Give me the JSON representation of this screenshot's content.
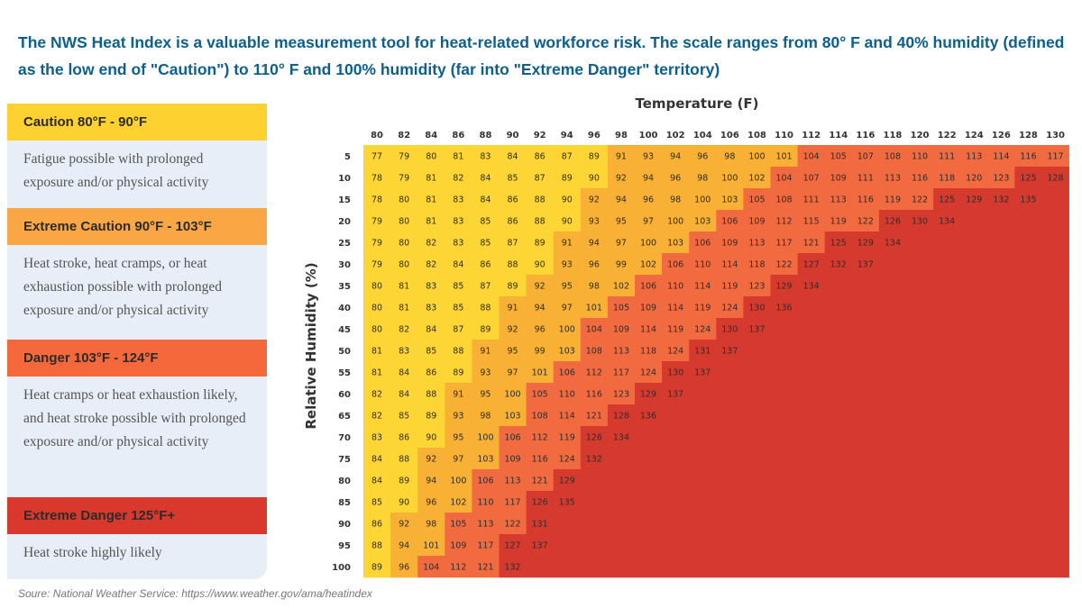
{
  "header": {
    "title": "The NWS Heat Index is a valuable measurement tool for heat-related workforce risk. The scale ranges from 80° F and 40% humidity (defined as the low end of \"Caution\") to 110° F and 100% humidity (far into \"Extreme Danger\" territory)"
  },
  "legend": {
    "caution": {
      "label": "Caution  80°F - 90°F",
      "desc": "Fatigue possible with prolonged exposure and/or physical activity",
      "color": "#fdcf2f"
    },
    "extreme_caution": {
      "label": "Extreme Caution  90°F - 103°F",
      "desc": "Heat stroke, heat cramps, or heat exhaustion possible with prolonged exposure and/or physical activity",
      "color": "#f9a745"
    },
    "danger": {
      "label": "Danger  103°F - 124°F",
      "desc": "Heat cramps or heat exhaustion likely, and heat stroke possible with prolonged exposure and/or physical activity",
      "color": "#f5683c"
    },
    "extreme_danger": {
      "label": "Extreme Danger  125°F+",
      "desc": "Heat stroke highly likely",
      "color": "#d8392c"
    }
  },
  "source": "Soure: National Weather Service: https://www.weather.gov/ama/heatindex",
  "chart_data": {
    "type": "heatmap",
    "title": "",
    "xlabel": "Temperature (F)",
    "ylabel": "Relative Humidity (%)",
    "x": [
      80,
      82,
      84,
      86,
      88,
      90,
      92,
      94,
      96,
      98,
      100,
      102,
      104,
      106,
      108,
      110,
      112,
      114,
      116,
      118,
      120,
      122,
      124,
      126,
      128,
      130
    ],
    "y": [
      5,
      10,
      15,
      20,
      25,
      30,
      35,
      40,
      45,
      50,
      55,
      60,
      65,
      70,
      75,
      80,
      85,
      90,
      95,
      100
    ],
    "values": [
      [
        77,
        79,
        80,
        81,
        83,
        84,
        86,
        87,
        89,
        91,
        93,
        94,
        96,
        98,
        100,
        101,
        104,
        105,
        107,
        108,
        110,
        111,
        113,
        114,
        116,
        117
      ],
      [
        78,
        79,
        81,
        82,
        84,
        85,
        87,
        89,
        90,
        92,
        94,
        96,
        98,
        100,
        102,
        104,
        107,
        109,
        111,
        113,
        116,
        118,
        120,
        123,
        125,
        128
      ],
      [
        78,
        80,
        81,
        83,
        84,
        86,
        88,
        90,
        92,
        94,
        96,
        98,
        100,
        103,
        105,
        108,
        111,
        113,
        116,
        119,
        122,
        125,
        129,
        132,
        135
      ],
      [
        79,
        80,
        81,
        83,
        85,
        86,
        88,
        90,
        93,
        95,
        97,
        100,
        103,
        106,
        109,
        112,
        115,
        119,
        122,
        126,
        130,
        134
      ],
      [
        79,
        80,
        82,
        83,
        85,
        87,
        89,
        91,
        94,
        97,
        100,
        103,
        106,
        109,
        113,
        117,
        121,
        125,
        129,
        134
      ],
      [
        79,
        80,
        82,
        84,
        86,
        88,
        90,
        93,
        96,
        99,
        102,
        106,
        110,
        114,
        118,
        122,
        127,
        132,
        137
      ],
      [
        80,
        81,
        83,
        85,
        87,
        89,
        92,
        95,
        98,
        102,
        106,
        110,
        114,
        119,
        123,
        129,
        134
      ],
      [
        80,
        81,
        83,
        85,
        88,
        91,
        94,
        97,
        101,
        105,
        109,
        114,
        119,
        124,
        130,
        136
      ],
      [
        80,
        82,
        84,
        87,
        89,
        92,
        96,
        100,
        104,
        109,
        114,
        119,
        124,
        130,
        137
      ],
      [
        81,
        83,
        85,
        88,
        91,
        95,
        99,
        103,
        108,
        113,
        118,
        124,
        131,
        137
      ],
      [
        81,
        84,
        86,
        89,
        93,
        97,
        101,
        106,
        112,
        117,
        124,
        130,
        137
      ],
      [
        82,
        84,
        88,
        91,
        95,
        100,
        105,
        110,
        116,
        123,
        129,
        137
      ],
      [
        82,
        85,
        89,
        93,
        98,
        103,
        108,
        114,
        121,
        128,
        136
      ],
      [
        83,
        86,
        90,
        95,
        100,
        106,
        112,
        119,
        126,
        134
      ],
      [
        84,
        88,
        92,
        97,
        103,
        109,
        116,
        124,
        132
      ],
      [
        84,
        89,
        94,
        100,
        106,
        113,
        121,
        129
      ],
      [
        85,
        90,
        96,
        102,
        110,
        117,
        126,
        135
      ],
      [
        86,
        92,
        98,
        105,
        113,
        122,
        131
      ],
      [
        88,
        94,
        101,
        109,
        117,
        127,
        137
      ],
      [
        89,
        96,
        104,
        112,
        121,
        132
      ]
    ],
    "thresholds": [
      {
        "max": 90,
        "color": "#fdd636"
      },
      {
        "max": 103,
        "color": "#f8b134"
      },
      {
        "max": 124,
        "color": "#f26a3f"
      },
      {
        "max": 9999,
        "color": "#d63a2f"
      }
    ],
    "empty_color": "#d63a2f"
  }
}
